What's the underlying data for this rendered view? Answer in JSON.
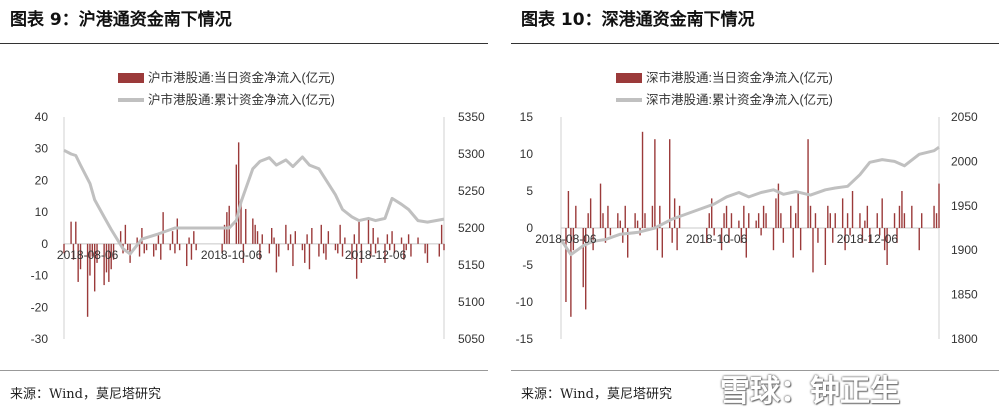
{
  "watermark": {
    "text": "雪球：钟正生"
  },
  "chart_data": [
    {
      "id": "left",
      "type": "bar",
      "title": "图表 9：沪港通资金南下情况",
      "source": "来源：Wind，莫尼塔研究",
      "legend": [
        {
          "name": "沪市港股通:当日资金净流入(亿元)",
          "kind": "bar",
          "color": "#9b3a3a"
        },
        {
          "name": "沪市港股通:累计资金净流入(亿元)",
          "kind": "line",
          "color": "#c0c0c0"
        }
      ],
      "x_range": [
        "2018-07-27",
        "2019-01-04"
      ],
      "x_ticks": [
        "2018-08-06",
        "2018-10-06",
        "2018-12-06"
      ],
      "y_left": {
        "min": -30,
        "max": 40,
        "ticks": [
          -30,
          -20,
          -10,
          0,
          10,
          20,
          30,
          40
        ]
      },
      "y_right": {
        "min": 5050,
        "max": 5350,
        "ticks": [
          5050,
          5100,
          5150,
          5200,
          5250,
          5300,
          5350
        ]
      },
      "bars": {
        "dates": [
          "2018-07-27",
          "2018-07-30",
          "2018-07-31",
          "2018-08-01",
          "2018-08-02",
          "2018-08-03",
          "2018-08-06",
          "2018-08-07",
          "2018-08-08",
          "2018-08-09",
          "2018-08-10",
          "2018-08-13",
          "2018-08-14",
          "2018-08-15",
          "2018-08-16",
          "2018-08-17",
          "2018-08-20",
          "2018-08-21",
          "2018-08-22",
          "2018-08-23",
          "2018-08-24",
          "2018-08-27",
          "2018-08-28",
          "2018-08-29",
          "2018-08-30",
          "2018-08-31",
          "2018-09-03",
          "2018-09-04",
          "2018-09-05",
          "2018-09-06",
          "2018-09-07",
          "2018-09-10",
          "2018-09-11",
          "2018-09-12",
          "2018-09-13",
          "2018-09-14",
          "2018-09-17",
          "2018-09-18",
          "2018-09-19",
          "2018-09-20",
          "2018-09-21",
          "2018-10-02",
          "2018-10-03",
          "2018-10-04",
          "2018-10-05",
          "2018-10-08",
          "2018-10-09",
          "2018-10-10",
          "2018-10-11",
          "2018-10-12",
          "2018-10-15",
          "2018-10-16",
          "2018-10-17",
          "2018-10-18",
          "2018-10-19",
          "2018-10-22",
          "2018-10-23",
          "2018-10-24",
          "2018-10-25",
          "2018-10-26",
          "2018-10-29",
          "2018-10-30",
          "2018-10-31",
          "2018-11-01",
          "2018-11-02",
          "2018-11-05",
          "2018-11-06",
          "2018-11-07",
          "2018-11-08",
          "2018-11-09",
          "2018-11-12",
          "2018-11-13",
          "2018-11-14",
          "2018-11-15",
          "2018-11-16",
          "2018-11-19",
          "2018-11-20",
          "2018-11-21",
          "2018-11-22",
          "2018-11-23",
          "2018-11-26",
          "2018-11-27",
          "2018-11-28",
          "2018-11-29",
          "2018-11-30",
          "2018-12-03",
          "2018-12-04",
          "2018-12-05",
          "2018-12-06",
          "2018-12-07",
          "2018-12-10",
          "2018-12-11",
          "2018-12-12",
          "2018-12-13",
          "2018-12-14",
          "2018-12-17",
          "2018-12-18",
          "2018-12-19",
          "2018-12-20",
          "2018-12-21",
          "2018-12-24",
          "2018-12-27",
          "2018-12-28",
          "2019-01-02",
          "2019-01-03",
          "2019-01-04"
        ],
        "values": [
          -3,
          7,
          -5,
          7,
          -12,
          -8,
          -23,
          -10,
          -4,
          -15,
          -6,
          -13,
          -9,
          -12,
          -8,
          -5,
          4,
          -3,
          6,
          -2,
          -6,
          2,
          -4,
          5,
          -3,
          -2,
          -4,
          -2,
          3,
          -5,
          10,
          -2,
          4,
          -3,
          8,
          -2,
          -7,
          2,
          -5,
          4,
          -2,
          -3,
          6,
          10,
          12,
          25,
          32,
          14,
          -6,
          11,
          8,
          6,
          4,
          -5,
          3,
          -3,
          5,
          2,
          -9,
          -4,
          6,
          -2,
          3,
          -7,
          4,
          -2,
          -6,
          3,
          -8,
          5,
          -4,
          6,
          -3,
          -5,
          4,
          -2,
          -3,
          6,
          -4,
          2,
          -5,
          3,
          -11,
          7,
          -6,
          8,
          -4,
          5,
          -3,
          2,
          -6,
          3,
          -2,
          4,
          -3,
          2,
          -5,
          -2,
          3,
          -4,
          2,
          -3,
          -6,
          -4,
          6,
          -2
        ]
      },
      "line": {
        "dates": [
          "2018-07-27",
          "2018-07-30",
          "2018-08-01",
          "2018-08-03",
          "2018-08-07",
          "2018-08-09",
          "2018-08-13",
          "2018-08-16",
          "2018-08-21",
          "2018-08-24",
          "2018-08-29",
          "2018-09-05",
          "2018-09-12",
          "2018-09-20",
          "2018-10-05",
          "2018-10-08",
          "2018-10-10",
          "2018-10-15",
          "2018-10-18",
          "2018-10-22",
          "2018-10-25",
          "2018-10-29",
          "2018-11-01",
          "2018-11-05",
          "2018-11-08",
          "2018-11-12",
          "2018-11-15",
          "2018-11-19",
          "2018-11-22",
          "2018-11-26",
          "2018-11-29",
          "2018-12-03",
          "2018-12-06",
          "2018-12-10",
          "2018-12-13",
          "2018-12-17",
          "2018-12-20",
          "2018-12-24",
          "2018-12-28",
          "2019-01-04"
        ],
        "values": [
          5305,
          5300,
          5298,
          5285,
          5260,
          5238,
          5215,
          5198,
          5172,
          5165,
          5185,
          5192,
          5200,
          5200,
          5200,
          5210,
          5235,
          5280,
          5290,
          5295,
          5285,
          5292,
          5283,
          5296,
          5285,
          5280,
          5265,
          5245,
          5225,
          5215,
          5210,
          5213,
          5210,
          5213,
          5240,
          5232,
          5225,
          5210,
          5208,
          5212
        ]
      }
    },
    {
      "id": "right",
      "type": "bar",
      "title": "图表 10：深港通资金南下情况",
      "source": "来源：Wind，莫尼塔研究",
      "legend": [
        {
          "name": "深市港股通:当日资金净流入(亿元)",
          "kind": "bar",
          "color": "#9b3a3a"
        },
        {
          "name": "深市港股通:累计资金净流入(亿元)",
          "kind": "line",
          "color": "#c0c0c0"
        }
      ],
      "x_range": [
        "2018-08-04",
        "2019-01-04"
      ],
      "x_ticks": [
        "2018-08-06",
        "2018-10-06",
        "2018-12-06"
      ],
      "y_left": {
        "min": -15,
        "max": 15,
        "ticks": [
          -15,
          -10,
          -5,
          0,
          5,
          10,
          15
        ]
      },
      "y_right": {
        "min": 1800,
        "max": 2050,
        "ticks": [
          1800,
          1850,
          1900,
          1950,
          2000,
          2050
        ]
      },
      "bars": {
        "dates": [
          "2018-08-06",
          "2018-08-07",
          "2018-08-08",
          "2018-08-09",
          "2018-08-10",
          "2018-08-13",
          "2018-08-14",
          "2018-08-15",
          "2018-08-16",
          "2018-08-17",
          "2018-08-20",
          "2018-08-21",
          "2018-08-22",
          "2018-08-23",
          "2018-08-24",
          "2018-08-27",
          "2018-08-28",
          "2018-08-29",
          "2018-08-30",
          "2018-08-31",
          "2018-09-03",
          "2018-09-04",
          "2018-09-05",
          "2018-09-06",
          "2018-09-07",
          "2018-09-10",
          "2018-09-11",
          "2018-09-12",
          "2018-09-13",
          "2018-09-14",
          "2018-09-17",
          "2018-09-18",
          "2018-09-19",
          "2018-09-20",
          "2018-09-21",
          "2018-10-02",
          "2018-10-03",
          "2018-10-04",
          "2018-10-05",
          "2018-10-08",
          "2018-10-09",
          "2018-10-10",
          "2018-10-11",
          "2018-10-12",
          "2018-10-15",
          "2018-10-16",
          "2018-10-17",
          "2018-10-18",
          "2018-10-19",
          "2018-10-22",
          "2018-10-23",
          "2018-10-24",
          "2018-10-25",
          "2018-10-26",
          "2018-10-29",
          "2018-10-30",
          "2018-10-31",
          "2018-11-01",
          "2018-11-02",
          "2018-11-05",
          "2018-11-06",
          "2018-11-07",
          "2018-11-08",
          "2018-11-09",
          "2018-11-12",
          "2018-11-13",
          "2018-11-14",
          "2018-11-15",
          "2018-11-16",
          "2018-11-19",
          "2018-11-20",
          "2018-11-21",
          "2018-11-22",
          "2018-11-23",
          "2018-11-26",
          "2018-11-27",
          "2018-11-28",
          "2018-11-29",
          "2018-11-30",
          "2018-12-03",
          "2018-12-04",
          "2018-12-05",
          "2018-12-06",
          "2018-12-07",
          "2018-12-10",
          "2018-12-11",
          "2018-12-12",
          "2018-12-13",
          "2018-12-14",
          "2018-12-17",
          "2018-12-18",
          "2018-12-19",
          "2018-12-20",
          "2018-12-21",
          "2018-12-24",
          "2018-12-27",
          "2018-12-28",
          "2019-01-02",
          "2019-01-03",
          "2019-01-04"
        ],
        "values": [
          -10,
          5,
          -12,
          -3,
          3,
          -8,
          -11,
          2,
          4,
          -3,
          6,
          2,
          -2,
          3,
          -1,
          2,
          1,
          -2,
          3,
          -4,
          2,
          1,
          -1,
          13,
          2,
          3,
          12,
          -3,
          3,
          -4,
          12,
          -2,
          4,
          -3,
          3,
          -2,
          2,
          4,
          -1,
          -3,
          2,
          3,
          -2,
          2,
          1,
          -2,
          3,
          -4,
          2,
          1,
          2,
          -1,
          3,
          2,
          -3,
          4,
          6,
          2,
          -2,
          3,
          -4,
          2,
          5,
          -3,
          12,
          3,
          -6,
          2,
          -2,
          -5,
          3,
          2,
          -2,
          2,
          4,
          -3,
          2,
          -1,
          5,
          2,
          -2,
          1,
          3,
          -2,
          2,
          -1,
          4,
          -3,
          -5,
          2,
          -2,
          3,
          5,
          2,
          3,
          -3,
          2,
          3,
          2,
          6
        ]
      },
      "line": {
        "dates": [
          "2018-08-04",
          "2018-08-08",
          "2018-08-13",
          "2018-08-17",
          "2018-08-22",
          "2018-08-28",
          "2018-09-04",
          "2018-09-11",
          "2018-09-18",
          "2018-10-05",
          "2018-10-10",
          "2018-10-15",
          "2018-10-19",
          "2018-10-24",
          "2018-10-29",
          "2018-11-02",
          "2018-11-07",
          "2018-11-13",
          "2018-11-19",
          "2018-11-23",
          "2018-11-28",
          "2018-12-03",
          "2018-12-07",
          "2018-12-12",
          "2018-12-17",
          "2018-12-21",
          "2018-12-27",
          "2019-01-02",
          "2019-01-04"
        ],
        "values": [
          1912,
          1895,
          1905,
          1910,
          1912,
          1918,
          1920,
          1925,
          1935,
          1952,
          1960,
          1965,
          1960,
          1965,
          1968,
          1963,
          1966,
          1962,
          1968,
          1970,
          1972,
          1985,
          1999,
          2002,
          2000,
          1995,
          2008,
          2012,
          2016
        ]
      }
    }
  ]
}
